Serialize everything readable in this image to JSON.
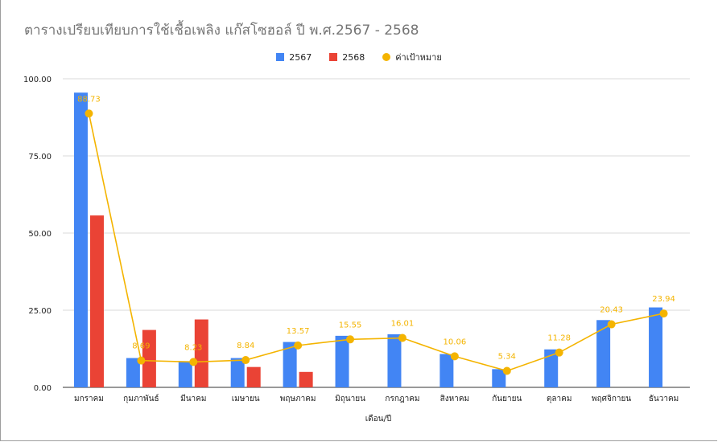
{
  "chart_data": {
    "type": "bar",
    "title": "ตารางเปรียบเทียบการใช้เชื้อเพลิง แก๊สโซฮอล์ ปี พ.ศ.2567 - 2568",
    "xlabel": "เดือน/ปี",
    "ylabel": "",
    "ylim": [
      0,
      100
    ],
    "yticks": [
      "0.00",
      "25.00",
      "50.00",
      "75.00",
      "100.00"
    ],
    "grid": true,
    "legend_position": "top",
    "categories": [
      "มกราคม",
      "กุมภาพันธ์",
      "มีนาคม",
      "เมษายน",
      "พฤษภาคม",
      "มิถุนายน",
      "กรกฎาคม",
      "สิงหาคม",
      "กันยายน",
      "ตุลาคม",
      "พฤศจิกายน",
      "ธันวาคม"
    ],
    "series": [
      {
        "name": "2567",
        "kind": "bar",
        "color": "#4285f4",
        "values": [
          95.5,
          9.5,
          8.5,
          9.5,
          14.7,
          16.7,
          17.2,
          10.8,
          5.9,
          12.3,
          21.8,
          25.9
        ]
      },
      {
        "name": "2568",
        "kind": "bar",
        "color": "#ea4335",
        "values": [
          55.7,
          18.6,
          22.0,
          6.6,
          5.0,
          null,
          null,
          null,
          null,
          null,
          null,
          null
        ]
      },
      {
        "name": "ค่าเป้าหมาย",
        "kind": "line",
        "color": "#f4b400",
        "values": [
          88.73,
          8.69,
          8.23,
          8.84,
          13.57,
          15.55,
          16.01,
          10.06,
          5.34,
          11.28,
          20.43,
          23.94
        ],
        "labels": [
          "88.73",
          "8.69",
          "8.23",
          "8.84",
          "13.57",
          "15.55",
          "16.01",
          "10.06",
          "5.34",
          "11.28",
          "20.43",
          "23.94"
        ]
      }
    ]
  }
}
